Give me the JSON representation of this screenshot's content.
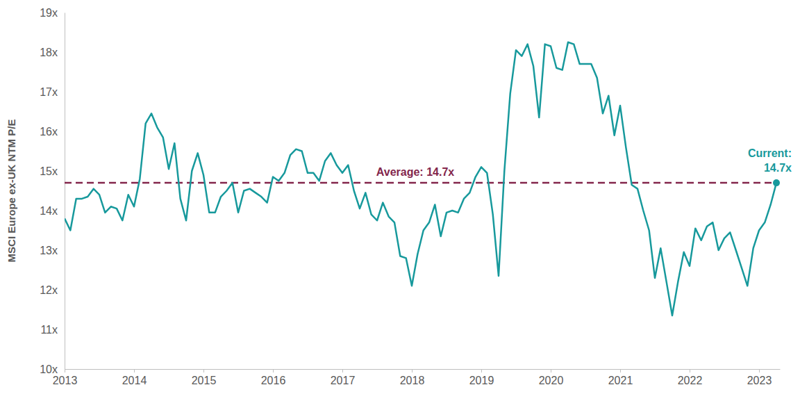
{
  "chart_data": {
    "type": "line",
    "y_label": "MSCI Europe ex-UK NTM P/E",
    "x": [
      2013,
      2013.083,
      2013.167,
      2013.25,
      2013.333,
      2013.417,
      2013.5,
      2013.583,
      2013.667,
      2013.75,
      2013.833,
      2013.917,
      2014,
      2014.083,
      2014.167,
      2014.25,
      2014.333,
      2014.417,
      2014.5,
      2014.583,
      2014.667,
      2014.75,
      2014.833,
      2014.917,
      2015,
      2015.083,
      2015.167,
      2015.25,
      2015.333,
      2015.417,
      2015.5,
      2015.583,
      2015.667,
      2015.75,
      2015.833,
      2015.917,
      2016,
      2016.083,
      2016.167,
      2016.25,
      2016.333,
      2016.417,
      2016.5,
      2016.583,
      2016.667,
      2016.75,
      2016.833,
      2016.917,
      2017,
      2017.083,
      2017.167,
      2017.25,
      2017.333,
      2017.417,
      2017.5,
      2017.583,
      2017.667,
      2017.75,
      2017.833,
      2017.917,
      2018,
      2018.083,
      2018.167,
      2018.25,
      2018.333,
      2018.417,
      2018.5,
      2018.583,
      2018.667,
      2018.75,
      2018.833,
      2018.917,
      2019,
      2019.083,
      2019.167,
      2019.25,
      2019.333,
      2019.417,
      2019.5,
      2019.583,
      2019.667,
      2019.75,
      2019.833,
      2019.917,
      2020,
      2020.083,
      2020.167,
      2020.25,
      2020.333,
      2020.417,
      2020.5,
      2020.583,
      2020.667,
      2020.75,
      2020.833,
      2020.917,
      2021,
      2021.083,
      2021.167,
      2021.25,
      2021.333,
      2021.417,
      2021.5,
      2021.583,
      2021.667,
      2021.75,
      2021.833,
      2021.917,
      2022,
      2022.083,
      2022.167,
      2022.25,
      2022.333,
      2022.417,
      2022.5,
      2022.583,
      2022.667,
      2022.75,
      2022.833,
      2022.917,
      2023,
      2023.083,
      2023.167,
      2023.25
    ],
    "series": [
      {
        "name": "MSCI Europe ex-UK NTM P/E",
        "color": "#17999c",
        "line_style": "solid",
        "values": [
          13.8,
          13.5,
          14.3,
          14.3,
          14.35,
          14.55,
          14.4,
          13.95,
          14.1,
          14.05,
          13.75,
          14.4,
          14.1,
          14.8,
          16.2,
          16.45,
          16.1,
          15.85,
          15.05,
          15.7,
          14.3,
          13.75,
          15.0,
          15.45,
          14.9,
          13.95,
          13.95,
          14.35,
          14.5,
          14.7,
          13.95,
          14.5,
          14.55,
          14.45,
          14.35,
          14.2,
          14.85,
          14.75,
          14.95,
          15.4,
          15.55,
          15.5,
          14.95,
          14.95,
          14.75,
          15.25,
          15.45,
          15.15,
          14.95,
          15.15,
          14.5,
          14.05,
          14.45,
          13.9,
          13.75,
          14.2,
          13.85,
          13.7,
          12.85,
          12.8,
          12.1,
          12.9,
          13.5,
          13.7,
          14.15,
          13.35,
          13.95,
          14.0,
          13.95,
          14.3,
          14.45,
          14.85,
          15.1,
          14.95,
          13.9,
          12.35,
          15.0,
          16.95,
          18.05,
          17.9,
          18.2,
          17.65,
          16.35,
          18.2,
          18.15,
          17.6,
          17.55,
          18.25,
          18.2,
          17.7,
          17.7,
          17.7,
          17.35,
          16.45,
          16.9,
          15.9,
          16.65,
          15.6,
          14.65,
          14.55,
          14.0,
          13.5,
          12.3,
          13.05,
          12.2,
          11.35,
          12.2,
          12.95,
          12.6,
          13.55,
          13.25,
          13.6,
          13.7,
          13.0,
          13.3,
          13.45,
          13.0,
          12.55,
          12.1,
          13.05,
          13.5,
          13.7,
          14.15,
          14.7
        ]
      }
    ],
    "xlim": [
      2013,
      2023.3
    ],
    "xticks": [
      2013,
      2014,
      2015,
      2016,
      2017,
      2018,
      2019,
      2020,
      2021,
      2022,
      2023
    ],
    "ylim": [
      10,
      19
    ],
    "yticks": [
      {
        "value": 10,
        "label": "10x"
      },
      {
        "value": 11,
        "label": "11x"
      },
      {
        "value": 12,
        "label": "12x"
      },
      {
        "value": 13,
        "label": "13x"
      },
      {
        "value": 14,
        "label": "14x"
      },
      {
        "value": 15,
        "label": "15x"
      },
      {
        "value": 16,
        "label": "16x"
      },
      {
        "value": 17,
        "label": "17x"
      },
      {
        "value": 18,
        "label": "18x"
      },
      {
        "value": 19,
        "label": "19x"
      }
    ],
    "grid": false,
    "reference_lines": [
      {
        "value": 14.7,
        "label": "Average: 14.7x",
        "color": "#83264c",
        "line_style": "dashed"
      }
    ],
    "annotations": [
      {
        "text": [
          "Current:",
          "14.7x"
        ],
        "x": 2023.25,
        "y": 14.7,
        "color": "#17999c",
        "marker": "circle"
      }
    ]
  }
}
